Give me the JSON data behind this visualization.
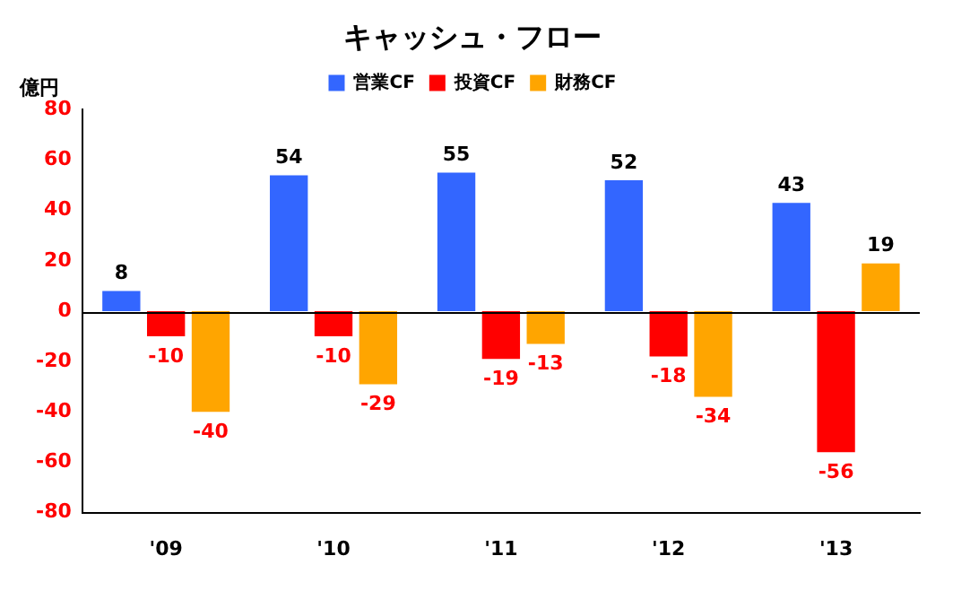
{
  "chart_data": {
    "type": "bar",
    "title": "キャッシュ・フロー",
    "ylabel": "億円",
    "categories": [
      "'09",
      "'10",
      "'11",
      "'12",
      "'13"
    ],
    "series": [
      {
        "name": "営業CF",
        "color": "#3366ff",
        "values": [
          8,
          54,
          55,
          52,
          43
        ]
      },
      {
        "name": "投資CF",
        "color": "#ff0000",
        "values": [
          -10,
          -10,
          -19,
          -18,
          -56
        ]
      },
      {
        "name": "財務CF",
        "color": "#ffa500",
        "values": [
          -40,
          -29,
          -13,
          -34,
          19
        ]
      }
    ],
    "ylim": [
      -80,
      80
    ],
    "yticks": [
      -80,
      -60,
      -40,
      -20,
      0,
      20,
      40,
      60,
      80
    ],
    "grid": false,
    "ref_lines": [
      {
        "axis": "y",
        "value": 0,
        "color": "#000000"
      }
    ],
    "legend": "top",
    "data_labels": true
  }
}
